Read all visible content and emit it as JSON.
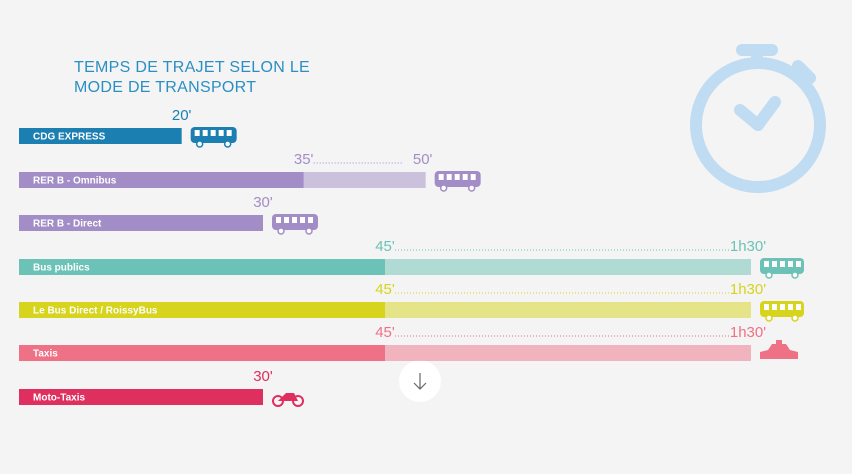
{
  "chart_data": {
    "type": "range-bar",
    "title": "TEMPS DE TRAJET SELON LE MODE DE TRANSPORT",
    "categories": [
      "CDG EXPRESS",
      "RER B - Omnibus",
      "RER B - Direct",
      "Bus publics",
      "Le Bus Direct / RoissyBus",
      "Taxis",
      "Moto-Taxis"
    ],
    "values": [
      20,
      35,
      30,
      45,
      45,
      45,
      30
    ],
    "value_labels": [
      "20'",
      "35'",
      "30'",
      "45'",
      "45'",
      "45'",
      "30'"
    ],
    "upper": [
      null,
      50,
      null,
      90,
      90,
      90,
      null
    ],
    "upper_labels": [
      null,
      "50'",
      null,
      "1h30'",
      "1h30'",
      "1h30'",
      null
    ],
    "colors": [
      "#1c7fb2",
      "#a38dc6",
      "#a38dc6",
      "#6cc2b6",
      "#d6d41c",
      "#ee7186",
      "#de2f5e"
    ],
    "xlim": [
      0,
      90
    ]
  }
}
